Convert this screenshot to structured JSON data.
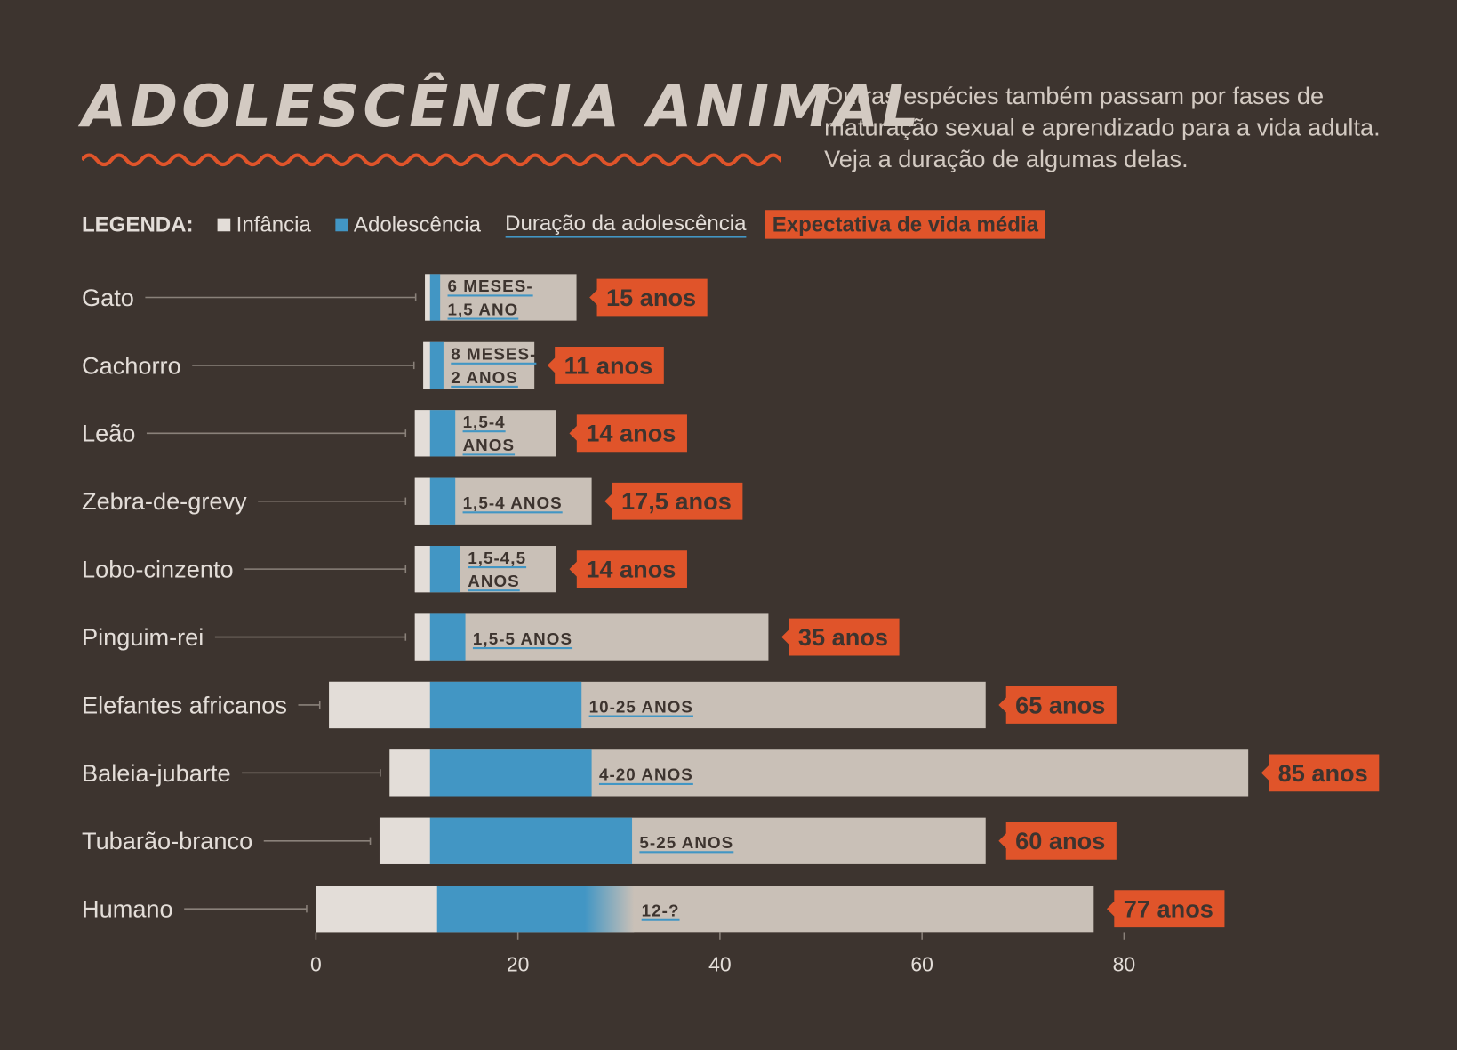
{
  "title": "ADOLESCÊNCIA ANIMAL",
  "subtitle": "Outras espécies também passam por fases de maturação sexual e aprendizado para a vida adulta. Veja a duração de algumas delas.",
  "legend": {
    "label": "LEGENDA:",
    "infancy": "Infância",
    "adolescence": "Adolescência",
    "duration": "Duração da adolescência",
    "life": "Expectativa de vida média"
  },
  "colors": {
    "background": "#3d342f",
    "infancy": "#e3ddd8",
    "adolescence": "#4296c4",
    "adult": "#c9c0b7",
    "life_label": "#e0542a"
  },
  "chart_data": {
    "type": "bar",
    "orientation": "horizontal",
    "xlim": [
      0,
      85
    ],
    "xticks": [
      "0",
      "20",
      "40",
      "60",
      "80"
    ],
    "alignment": "bars aligned at start of adolescence",
    "grid": false,
    "categories": [
      "Gato",
      "Cachorro",
      "Leão",
      "Zebra-de-grevy",
      "Lobo-cinzento",
      "Pinguim-rei",
      "Elefantes africanos",
      "Baleia-jubarte",
      "Tubarão-branco",
      "Humano"
    ],
    "rows": [
      {
        "name": "Gato",
        "adolescence_start": 0.5,
        "adolescence_end": 1.5,
        "life": 15,
        "duration_label": [
          "6 MESES-",
          "1,5 ANO"
        ],
        "life_label": "15 anos"
      },
      {
        "name": "Cachorro",
        "adolescence_start": 0.67,
        "adolescence_end": 2,
        "life": 11,
        "duration_label": [
          "8 MESES-",
          "2 ANOS"
        ],
        "life_label": "11 anos"
      },
      {
        "name": "Leão",
        "adolescence_start": 1.5,
        "adolescence_end": 4,
        "life": 14,
        "duration_label": [
          "1,5-4",
          "ANOS"
        ],
        "life_label": "14 anos"
      },
      {
        "name": "Zebra-de-grevy",
        "adolescence_start": 1.5,
        "adolescence_end": 4,
        "life": 17.5,
        "duration_label": [
          "1,5-4 ANOS"
        ],
        "life_label": "17,5 anos"
      },
      {
        "name": "Lobo-cinzento",
        "adolescence_start": 1.5,
        "adolescence_end": 4.5,
        "life": 14,
        "duration_label": [
          "1,5-4,5",
          "ANOS"
        ],
        "life_label": "14 anos"
      },
      {
        "name": "Pinguim-rei",
        "adolescence_start": 1.5,
        "adolescence_end": 5,
        "life": 35,
        "duration_label": [
          "1,5-5 ANOS"
        ],
        "life_label": "35 anos"
      },
      {
        "name": "Elefantes africanos",
        "adolescence_start": 10,
        "adolescence_end": 25,
        "life": 65,
        "duration_label": [
          "10-25 ANOS"
        ],
        "life_label": "65 anos"
      },
      {
        "name": "Baleia-jubarte",
        "adolescence_start": 4,
        "adolescence_end": 20,
        "life": 85,
        "duration_label": [
          "4-20 ANOS"
        ],
        "life_label": "85 anos"
      },
      {
        "name": "Tubarão-branco",
        "adolescence_start": 5,
        "adolescence_end": 25,
        "life": 60,
        "duration_label": [
          "5-25 ANOS"
        ],
        "life_label": "60 anos"
      },
      {
        "name": "Humano",
        "adolescence_start": 12,
        "adolescence_end": null,
        "life": 77,
        "duration_label": [
          "12-?"
        ],
        "life_label": "77 anos"
      }
    ]
  }
}
